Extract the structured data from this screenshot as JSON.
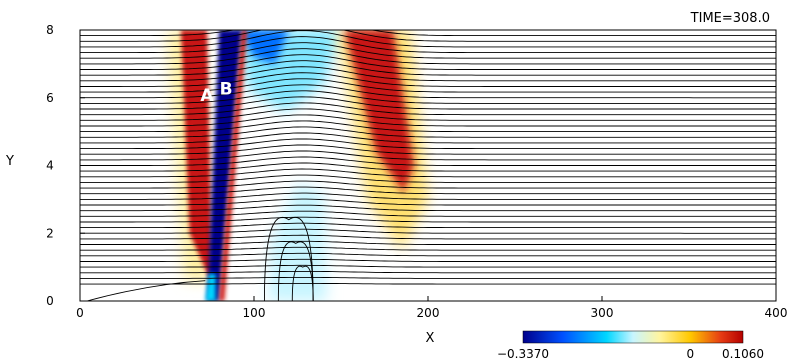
{
  "chart_data": {
    "type": "heatmap",
    "title": "",
    "time_label": "TIME=308.0",
    "xlabel": "X",
    "ylabel": "Y",
    "xlim": [
      0,
      400
    ],
    "ylim": [
      0,
      8
    ],
    "x_ticks": [
      {
        "value": 0,
        "label": "0"
      },
      {
        "value": 100,
        "label": "100"
      },
      {
        "value": 200,
        "label": "200"
      },
      {
        "value": 300,
        "label": "300"
      },
      {
        "value": 400,
        "label": "400"
      }
    ],
    "y_ticks": [
      {
        "value": 0,
        "label": "0"
      },
      {
        "value": 2,
        "label": "2"
      },
      {
        "value": 4,
        "label": "4"
      },
      {
        "value": 6,
        "label": "6"
      },
      {
        "value": 8,
        "label": "8"
      }
    ],
    "colorbar": {
      "min": -0.337,
      "max": 0.106,
      "labels": [
        {
          "value": -0.337,
          "label": "−0.3370"
        },
        {
          "value": 0,
          "label": "0"
        },
        {
          "value": 0.106,
          "label": "0.1060"
        }
      ]
    },
    "annotations": [
      {
        "text": "A",
        "x": 73,
        "y": 5.9
      },
      {
        "text": "B",
        "x": 84,
        "y": 6.1
      }
    ],
    "contour_lines": true
  },
  "colors": {
    "negative_strong": "#00008b",
    "negative_mid": "#00c8ff",
    "zero": "#ffffff",
    "positive_mid": "#ffd200",
    "positive_strong": "#c81414"
  }
}
